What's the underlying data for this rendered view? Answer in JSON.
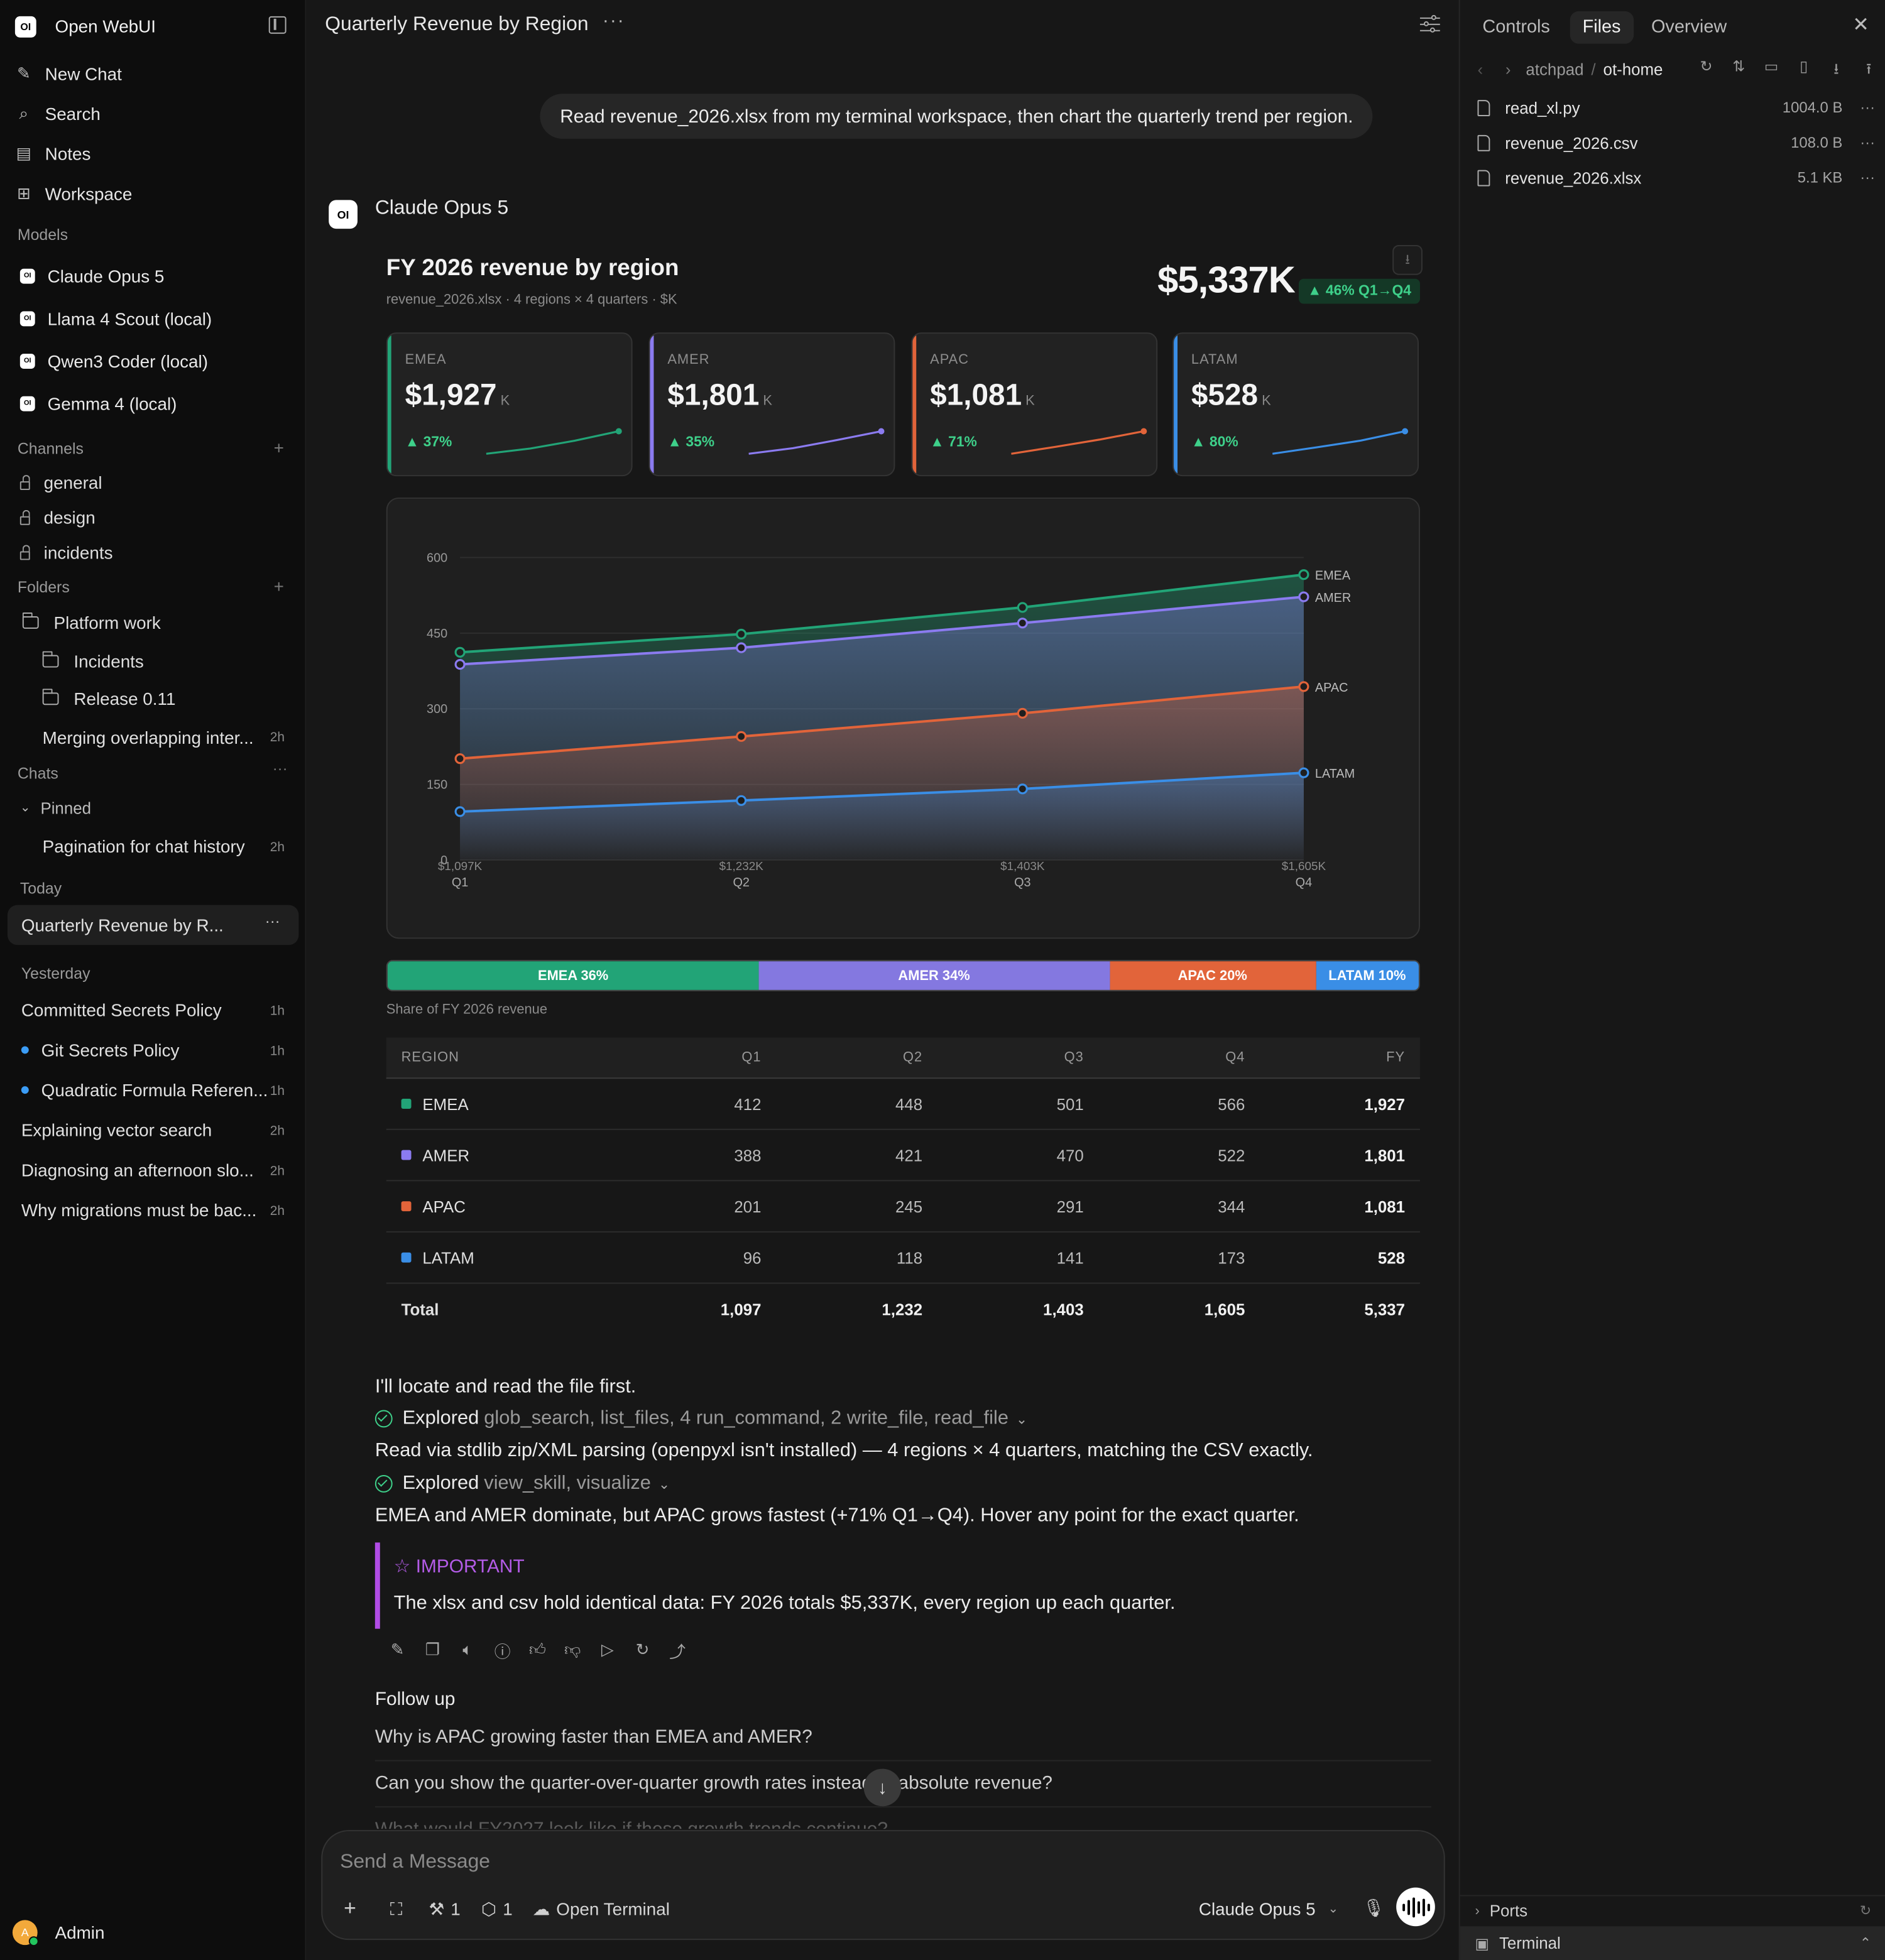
{
  "app": {
    "name": "Open WebUI"
  },
  "sidebar": {
    "nav": [
      {
        "label": "New Chat",
        "icon": "pencil-icon"
      },
      {
        "label": "Search",
        "icon": "search-icon"
      },
      {
        "label": "Notes",
        "icon": "notes-icon"
      },
      {
        "label": "Workspace",
        "icon": "grid-icon"
      }
    ],
    "models_label": "Models",
    "models": [
      "Claude Opus 5",
      "Llama 4 Scout (local)",
      "Qwen3 Coder (local)",
      "Gemma 4 (local)"
    ],
    "channels_label": "Channels",
    "channels": [
      "general",
      "design",
      "incidents"
    ],
    "folders_label": "Folders",
    "folders": {
      "root": "Platform work",
      "children": [
        "Incidents",
        "Release 0.11"
      ],
      "chat": {
        "title": "Merging overlapping inter...",
        "time": "2h"
      }
    },
    "chats_label": "Chats",
    "pinned_label": "Pinned",
    "pinned": [
      {
        "title": "Pagination for chat history",
        "time": "2h"
      }
    ],
    "today_label": "Today",
    "today": [
      {
        "title": "Quarterly Revenue by R..."
      }
    ],
    "yesterday_label": "Yesterday",
    "yesterday": [
      {
        "title": "Committed Secrets Policy",
        "time": "1h"
      },
      {
        "title": "Git Secrets Policy",
        "time": "1h"
      },
      {
        "title": "Quadratic Formula Referen...",
        "time": "1h"
      },
      {
        "title": "Explaining vector search",
        "time": "2h"
      },
      {
        "title": "Diagnosing an afternoon slo...",
        "time": "2h"
      },
      {
        "title": "Why migrations must be bac...",
        "time": "2h"
      }
    ],
    "user": {
      "initial": "A",
      "name": "Admin"
    }
  },
  "header": {
    "title": "Quarterly Revenue by Region",
    "more": "···"
  },
  "messages": {
    "user_text": "Read revenue_2026.xlsx from my terminal workspace, then chart the quarterly trend per region.",
    "assistant_logo": "OI",
    "assistant_name": "Claude Opus 5"
  },
  "card": {
    "title": "FY 2026 revenue by region",
    "subtitle": "revenue_2026.xlsx · 4 regions × 4 quarters · $K",
    "total": "$5,337K",
    "growth": "▲ 46% Q1→Q4",
    "kpis": [
      {
        "label": "EMEA",
        "value": "$1,927",
        "unit": "K",
        "growth": "▲ 37%",
        "color": "#22a477"
      },
      {
        "label": "AMER",
        "value": "$1,801",
        "unit": "K",
        "growth": "▲ 35%",
        "color": "#8b7bf0"
      },
      {
        "label": "APAC",
        "value": "$1,081",
        "unit": "K",
        "growth": "▲ 71%",
        "color": "#e2643a"
      },
      {
        "label": "LATAM",
        "value": "$528",
        "unit": "K",
        "growth": "▲ 80%",
        "color": "#3a8ee6"
      }
    ],
    "share_caption": "Share of FY 2026 revenue",
    "share": [
      {
        "label": "EMEA 36%",
        "value": 36,
        "color": "#22a477"
      },
      {
        "label": "AMER 34%",
        "value": 34,
        "color": "#8478e0"
      },
      {
        "label": "APAC 20%",
        "value": 20,
        "color": "#e2643a"
      },
      {
        "label": "LATAM 10%",
        "value": 10,
        "color": "#3a8ee6"
      }
    ],
    "table": {
      "headers": [
        "REGION",
        "Q1",
        "Q2",
        "Q3",
        "Q4",
        "FY"
      ],
      "rows": [
        {
          "region": "EMEA",
          "color": "#22a477",
          "q": [
            "412",
            "448",
            "501",
            "566"
          ],
          "fy": "1,927"
        },
        {
          "region": "AMER",
          "color": "#8b7bf0",
          "q": [
            "388",
            "421",
            "470",
            "522"
          ],
          "fy": "1,801"
        },
        {
          "region": "APAC",
          "color": "#e2643a",
          "q": [
            "201",
            "245",
            "291",
            "344"
          ],
          "fy": "1,081"
        },
        {
          "region": "LATAM",
          "color": "#3a8ee6",
          "q": [
            "96",
            "118",
            "141",
            "173"
          ],
          "fy": "528"
        }
      ],
      "total": {
        "label": "Total",
        "q": [
          "1,097",
          "1,232",
          "1,403",
          "1,605"
        ],
        "fy": "5,337"
      }
    }
  },
  "chart_data": {
    "type": "area",
    "categories": [
      "Q1",
      "Q2",
      "Q3",
      "Q4"
    ],
    "category_totals": [
      "$1,097K",
      "$1,232K",
      "$1,403K",
      "$1,605K"
    ],
    "y_ticks": [
      0,
      150,
      300,
      450,
      600
    ],
    "ylim": [
      0,
      600
    ],
    "grid": true,
    "legend": "inline-right",
    "series": [
      {
        "name": "EMEA",
        "values": [
          412,
          448,
          501,
          566
        ],
        "color": "#22a477"
      },
      {
        "name": "AMER",
        "values": [
          388,
          421,
          470,
          522
        ],
        "color": "#8b7bf0"
      },
      {
        "name": "APAC",
        "values": [
          201,
          245,
          291,
          344
        ],
        "color": "#e2643a"
      },
      {
        "name": "LATAM",
        "values": [
          96,
          118,
          141,
          173
        ],
        "color": "#3a8ee6"
      }
    ]
  },
  "reply": {
    "line1": "I'll locate and read the file first.",
    "explored1_label": "Explored",
    "explored1_tools": "glob_search, list_files, 4 run_command, 2 write_file, read_file",
    "line2": "Read via stdlib zip/XML parsing (openpyxl isn't installed) — 4 regions × 4 quarters, matching the CSV exactly.",
    "explored2_label": "Explored",
    "explored2_tools": "view_skill, visualize",
    "line3": "EMEA and AMER dominate, but APAC grows fastest (+71% Q1→Q4). Hover any point for the exact quarter.",
    "important_title": "IMPORTANT",
    "important_body": "The xlsx and csv hold identical data: FY 2026 totals $5,337K, every region up each quarter."
  },
  "followup": {
    "heading": "Follow up",
    "items": [
      "Why is APAC growing faster than EMEA and AMER?",
      "Can you show the quarter-over-quarter growth rates instead of absolute revenue?",
      "What would FY2027 look like if these growth trends continue?"
    ]
  },
  "composer": {
    "placeholder": "Send a Message",
    "tools_count": "1",
    "knowledge_count": "1",
    "terminal_label": "Open Terminal",
    "model": "Claude Opus 5"
  },
  "right_panel": {
    "tabs": [
      "Controls",
      "Files",
      "Overview"
    ],
    "active_tab": "Files",
    "crumbs": [
      "atchpad",
      "ot-home"
    ],
    "files": [
      {
        "name": "read_xl.py",
        "size": "1004.0 B"
      },
      {
        "name": "revenue_2026.csv",
        "size": "108.0 B"
      },
      {
        "name": "revenue_2026.xlsx",
        "size": "5.1 KB"
      }
    ],
    "ports_label": "Ports",
    "terminal_label": "Terminal"
  }
}
